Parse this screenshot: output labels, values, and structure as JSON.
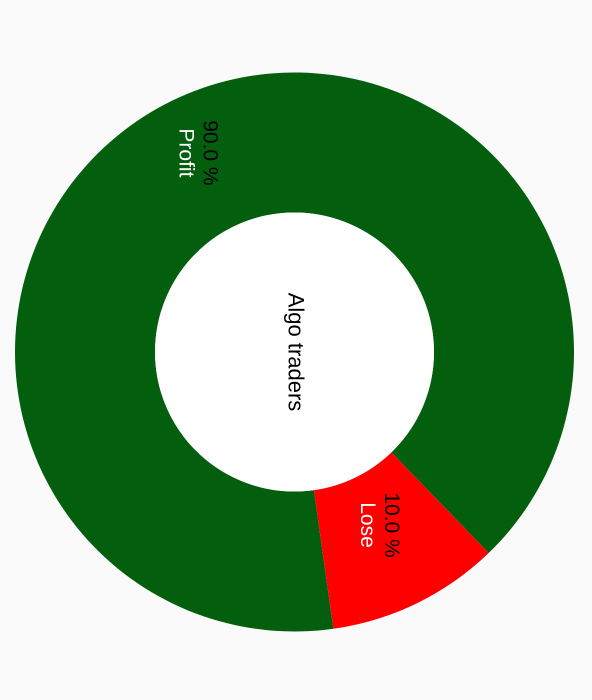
{
  "chart_data": {
    "type": "pie",
    "donut": true,
    "center_label": "Algo traders",
    "slices": [
      {
        "name": "Profit",
        "value": 90.0,
        "percent_label": "90.0 %",
        "color": "#035f0e",
        "percent_color": "#000000",
        "name_color": "#ffffff"
      },
      {
        "name": "Lose",
        "value": 10.0,
        "percent_label": "10.0 %",
        "color": "#ff0000",
        "percent_color": "#000000",
        "name_color": "#ffffff"
      }
    ],
    "legend": "none",
    "orientation": "rotated-90-clockwise"
  },
  "colors": {
    "background": "#fafafa",
    "hole": "#ffffff"
  }
}
